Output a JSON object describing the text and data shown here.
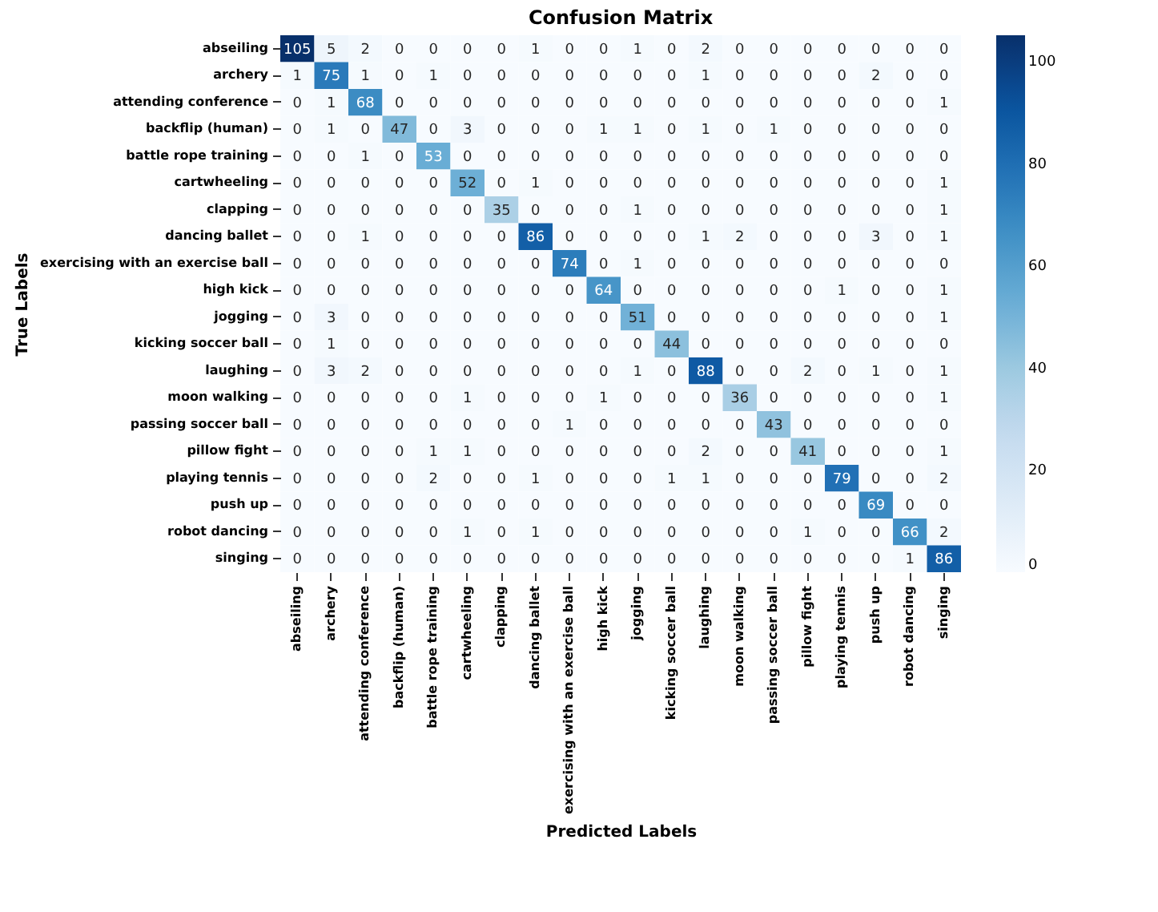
{
  "chart_data": {
    "type": "heatmap",
    "title": "Confusion Matrix",
    "xlabel": "Predicted Labels",
    "ylabel": "True Labels",
    "categories": [
      "abseiling",
      "archery",
      "attending conference",
      "backflip (human)",
      "battle rope training",
      "cartwheeling",
      "clapping",
      "dancing ballet",
      "exercising with an exercise ball",
      "high kick",
      "jogging",
      "kicking soccer ball",
      "laughing",
      "moon walking",
      "passing soccer ball",
      "pillow fight",
      "playing tennis",
      "push up",
      "robot dancing",
      "singing"
    ],
    "y_categories": [
      "abseiling",
      "archery",
      "attending conference",
      "backflip (human)",
      "battle rope training",
      "cartwheeling",
      "clapping",
      "dancing ballet",
      "exercising with an exercise ball",
      "high kick",
      "jogging",
      "kicking soccer ball",
      "laughing",
      "moon walking",
      "passing soccer ball",
      "pillow fight",
      "playing tennis",
      "push up",
      "robot dancing",
      "singing"
    ],
    "cells": [
      [
        105,
        5,
        2,
        0,
        0,
        0,
        0,
        1,
        0,
        0,
        1,
        0,
        2,
        0,
        0,
        0,
        0,
        0,
        0,
        0
      ],
      [
        1,
        75,
        1,
        0,
        1,
        0,
        0,
        0,
        0,
        0,
        0,
        0,
        1,
        0,
        0,
        0,
        0,
        2,
        0,
        0
      ],
      [
        0,
        1,
        68,
        0,
        0,
        0,
        0,
        0,
        0,
        0,
        0,
        0,
        0,
        0,
        0,
        0,
        0,
        0,
        0,
        1
      ],
      [
        0,
        1,
        0,
        47,
        0,
        3,
        0,
        0,
        0,
        1,
        1,
        0,
        1,
        0,
        1,
        0,
        0,
        0,
        0,
        0
      ],
      [
        0,
        0,
        1,
        0,
        53,
        0,
        0,
        0,
        0,
        0,
        0,
        0,
        0,
        0,
        0,
        0,
        0,
        0,
        0,
        0
      ],
      [
        0,
        0,
        0,
        0,
        0,
        52,
        0,
        1,
        0,
        0,
        0,
        0,
        0,
        0,
        0,
        0,
        0,
        0,
        0,
        1
      ],
      [
        0,
        0,
        0,
        0,
        0,
        0,
        35,
        0,
        0,
        0,
        1,
        0,
        0,
        0,
        0,
        0,
        0,
        0,
        0,
        1
      ],
      [
        0,
        0,
        1,
        0,
        0,
        0,
        0,
        86,
        0,
        0,
        0,
        0,
        1,
        2,
        0,
        0,
        0,
        3,
        0,
        1
      ],
      [
        0,
        0,
        0,
        0,
        0,
        0,
        0,
        0,
        74,
        0,
        1,
        0,
        0,
        0,
        0,
        0,
        0,
        0,
        0,
        0
      ],
      [
        0,
        0,
        0,
        0,
        0,
        0,
        0,
        0,
        0,
        64,
        0,
        0,
        0,
        0,
        0,
        0,
        1,
        0,
        0,
        1
      ],
      [
        0,
        3,
        0,
        0,
        0,
        0,
        0,
        0,
        0,
        0,
        51,
        0,
        0,
        0,
        0,
        0,
        0,
        0,
        0,
        1
      ],
      [
        0,
        1,
        0,
        0,
        0,
        0,
        0,
        0,
        0,
        0,
        0,
        44,
        0,
        0,
        0,
        0,
        0,
        0,
        0,
        0
      ],
      [
        0,
        3,
        2,
        0,
        0,
        0,
        0,
        0,
        0,
        0,
        1,
        0,
        88,
        0,
        0,
        2,
        0,
        1,
        0,
        1
      ],
      [
        0,
        0,
        0,
        0,
        0,
        1,
        0,
        0,
        0,
        1,
        0,
        0,
        0,
        36,
        0,
        0,
        0,
        0,
        0,
        1
      ],
      [
        0,
        0,
        0,
        0,
        0,
        0,
        0,
        0,
        1,
        0,
        0,
        0,
        0,
        0,
        43,
        0,
        0,
        0,
        0,
        0
      ],
      [
        0,
        0,
        0,
        0,
        1,
        1,
        0,
        0,
        0,
        0,
        0,
        0,
        2,
        0,
        0,
        41,
        0,
        0,
        0,
        1
      ],
      [
        0,
        0,
        0,
        0,
        2,
        0,
        0,
        1,
        0,
        0,
        0,
        1,
        1,
        0,
        0,
        0,
        79,
        0,
        0,
        2
      ],
      [
        0,
        0,
        0,
        0,
        0,
        0,
        0,
        0,
        0,
        0,
        0,
        0,
        0,
        0,
        0,
        0,
        0,
        69,
        0,
        0
      ],
      [
        0,
        0,
        0,
        0,
        0,
        1,
        0,
        1,
        0,
        0,
        0,
        0,
        0,
        0,
        0,
        1,
        0,
        0,
        66,
        2
      ],
      [
        0,
        0,
        0,
        0,
        0,
        0,
        0,
        0,
        0,
        0,
        0,
        0,
        0,
        0,
        0,
        0,
        0,
        0,
        1,
        86
      ]
    ],
    "data_labels": true,
    "clim": [
      0,
      105
    ],
    "cticks": [
      0,
      20,
      40,
      60,
      80,
      100
    ]
  }
}
